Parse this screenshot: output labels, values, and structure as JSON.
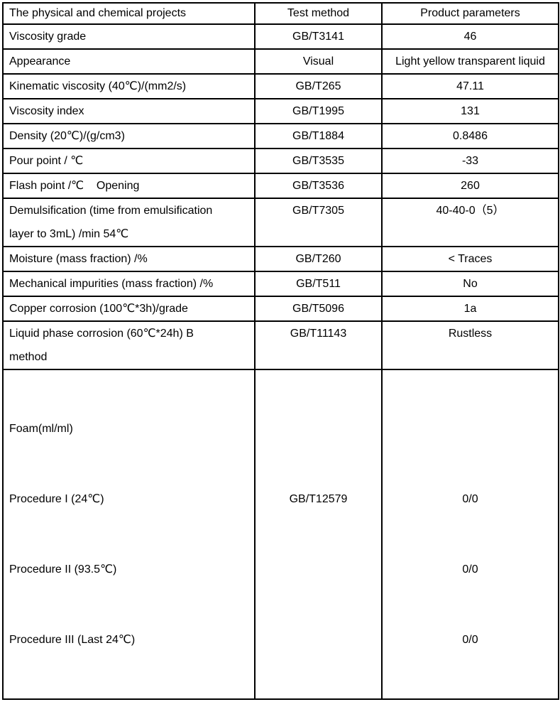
{
  "colors": {
    "text": "#000000",
    "border": "#000000",
    "background": "#ffffff"
  },
  "table": {
    "header": {
      "projects": "The physical and chemical projects",
      "method": "Test method",
      "parameters": "Product parameters"
    },
    "rows": [
      {
        "project": "Viscosity grade",
        "method": "GB/T3141",
        "value": "46"
      },
      {
        "project": "Appearance",
        "method": "Visual",
        "value": "Light yellow transparent liquid"
      },
      {
        "project": "Kinematic viscosity (40℃)/(mm2/s)",
        "method": "GB/T265",
        "value": "47.11"
      },
      {
        "project": "Viscosity index",
        "method": "GB/T1995",
        "value": "131"
      },
      {
        "project": "Density (20℃)/(g/cm3)",
        "method": "GB/T1884",
        "value": "0.8486"
      },
      {
        "project": "Pour point / ℃",
        "method": "GB/T3535",
        "value": "-33"
      },
      {
        "project": "Flash point /℃    Opening",
        "method": "GB/T3536",
        "value": "260"
      },
      {
        "project": "Demulsification (time from emulsification\nlayer to 3mL) /min 54℃",
        "method": "GB/T7305",
        "value": "40-40-0（5）"
      },
      {
        "project": "Moisture (mass fraction) /%",
        "method": "GB/T260",
        "value": "< Traces"
      },
      {
        "project": "Mechanical impurities (mass fraction) /%",
        "method": "GB/T511",
        "value": "No"
      },
      {
        "project": "Copper corrosion (100℃*3h)/grade",
        "method": "GB/T5096",
        "value": "1a"
      },
      {
        "project": "Liquid phase corrosion (60℃*24h) B\nmethod",
        "method": "GB/T11143",
        "value": "Rustless"
      }
    ],
    "foam": {
      "lines": [
        "Foam(ml/ml)",
        "Procedure I (24℃)",
        "Procedure II (93.5℃)",
        "Procedure III (Last 24℃)"
      ],
      "method": "GB/T12579",
      "values": [
        "0/0",
        "0/0",
        "0/0"
      ]
    }
  }
}
